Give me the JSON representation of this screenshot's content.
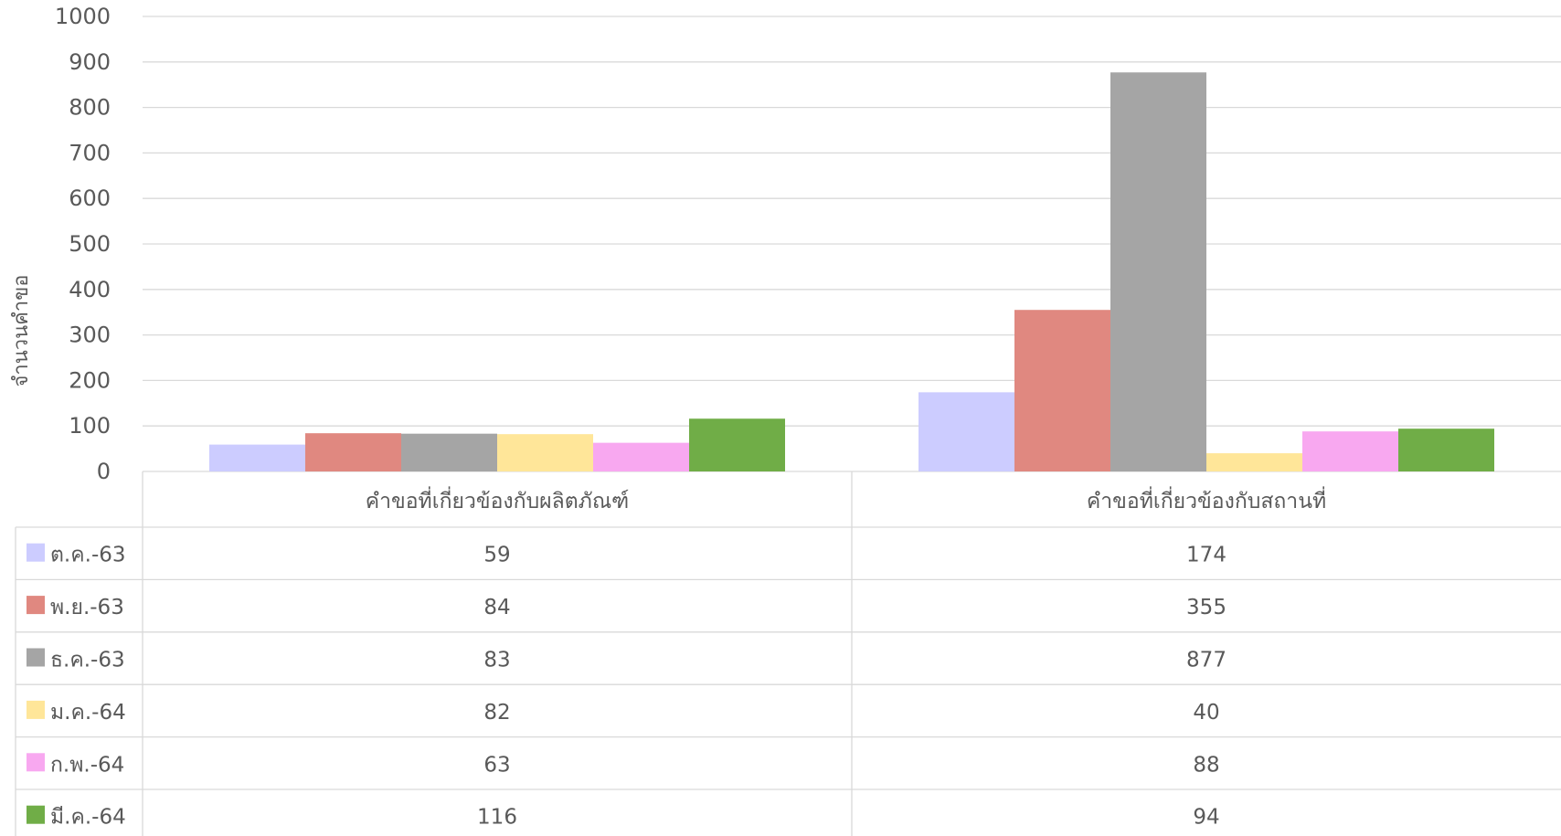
{
  "chart_data": {
    "type": "bar",
    "title": "",
    "xlabel": "",
    "ylabel": "จำนวนคำขอ",
    "ylim": [
      0,
      1000
    ],
    "yticks": [
      0,
      100,
      200,
      300,
      400,
      500,
      600,
      700,
      800,
      900,
      1000
    ],
    "grid": true,
    "legend": "data-table-below",
    "categories": [
      "คำขอที่เกี่ยวข้องกับผลิตภัณฑ์",
      "คำขอที่เกี่ยวข้องกับสถานที่"
    ],
    "series": [
      {
        "name": "ต.ค.-63",
        "color": "#ccccff",
        "values": [
          59,
          174
        ]
      },
      {
        "name": "พ.ย.-63",
        "color": "#e08880",
        "values": [
          84,
          355
        ]
      },
      {
        "name": "ธ.ค.-63",
        "color": "#a5a5a5",
        "values": [
          83,
          877
        ]
      },
      {
        "name": "ม.ค.-64",
        "color": "#ffe699",
        "values": [
          82,
          40
        ]
      },
      {
        "name": "ก.พ.-64",
        "color": "#f8a8f0",
        "values": [
          63,
          88
        ]
      },
      {
        "name": "มี.ค.-64",
        "color": "#70ad47",
        "values": [
          116,
          94
        ]
      }
    ]
  }
}
